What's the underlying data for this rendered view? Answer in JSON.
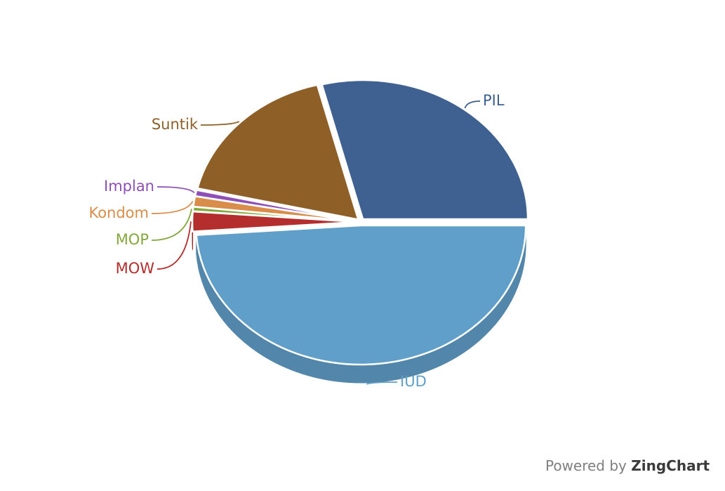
{
  "chart_data": {
    "type": "pie",
    "style": "3d",
    "slices": [
      {
        "label": "PIL",
        "value": 29.0,
        "color": "#3e6192"
      },
      {
        "label": "IUD",
        "value": 48.9,
        "color": "#609fc9"
      },
      {
        "label": "MOW",
        "value": 2.3,
        "color": "#b42e2d"
      },
      {
        "label": "MOP",
        "value": 0.5,
        "color": "#84a83b"
      },
      {
        "label": "Kondom",
        "value": 1.2,
        "color": "#d98d4a"
      },
      {
        "label": "Implan",
        "value": 0.7,
        "color": "#8e4fb6"
      },
      {
        "label": "Suntik",
        "value": 17.4,
        "color": "#8e5f27"
      }
    ]
  },
  "credit": {
    "prefix": "Powered by",
    "brand": "ZingChart"
  }
}
